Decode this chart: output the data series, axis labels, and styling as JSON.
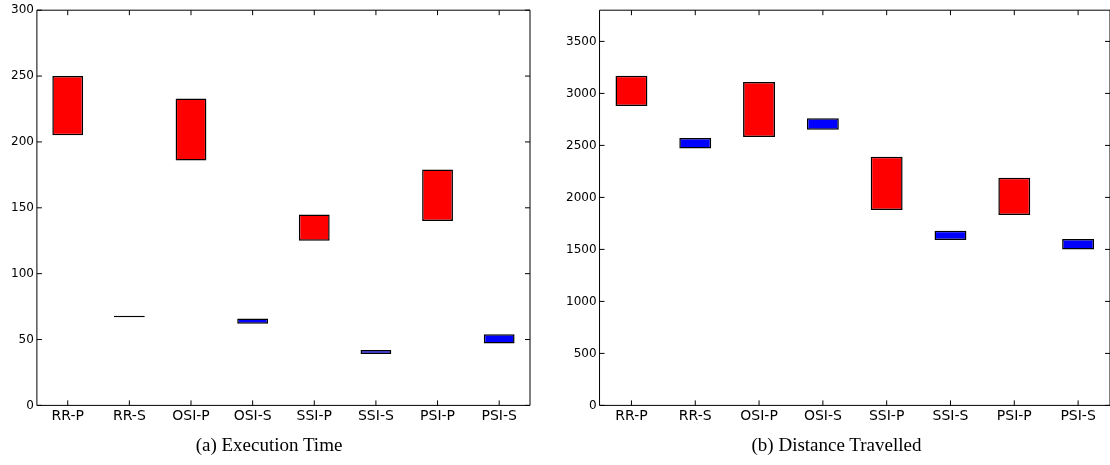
{
  "chart_data": [
    {
      "type": "bar",
      "title": "(a) Execution Time",
      "categories": [
        "RR-P",
        "RR-S",
        "OSI-P",
        "OSI-S",
        "SSI-P",
        "SSI-S",
        "PSI-P",
        "PSI-S"
      ],
      "base": [
        205,
        67,
        186,
        62,
        125,
        39,
        140,
        47
      ],
      "values": [
        45,
        1,
        47,
        4,
        20,
        3,
        39,
        7
      ],
      "colors": [
        "#ff0000",
        "#000000",
        "#ff0000",
        "#0000ff",
        "#ff0000",
        "#0000ff",
        "#ff0000",
        "#0000ff"
      ],
      "ylim": [
        0,
        300
      ],
      "yticks": [
        0,
        50,
        100,
        150,
        200,
        250,
        300
      ],
      "grid": false,
      "legend": false
    },
    {
      "type": "bar",
      "title": "(b) Distance Travelled",
      "categories": [
        "RR-P",
        "RR-S",
        "OSI-P",
        "OSI-S",
        "SSI-P",
        "SSI-S",
        "PSI-P",
        "PSI-S"
      ],
      "base": [
        2880,
        2470,
        2580,
        2650,
        1880,
        1590,
        1830,
        1500
      ],
      "values": [
        290,
        100,
        530,
        110,
        510,
        90,
        360,
        100
      ],
      "colors": [
        "#ff0000",
        "#0000ff",
        "#ff0000",
        "#0000ff",
        "#ff0000",
        "#0000ff",
        "#ff0000",
        "#0000ff"
      ],
      "ylim": [
        0,
        3800
      ],
      "yticks": [
        0,
        500,
        1000,
        1500,
        2000,
        2500,
        3000,
        3500
      ],
      "grid": false,
      "legend": false
    }
  ]
}
